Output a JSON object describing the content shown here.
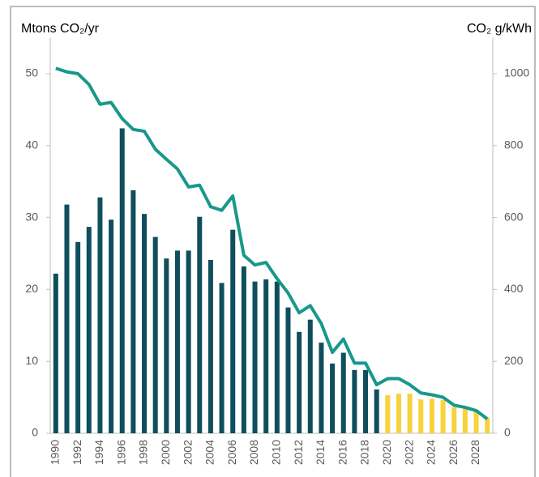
{
  "chart_data": {
    "type": "bar",
    "ylabel": "Mtons CO₂/yr",
    "y2label": "CO₂ g/kWh",
    "categories": [
      "1990",
      null,
      "1992",
      null,
      "1994",
      null,
      "1996",
      null,
      "1998",
      null,
      "2000",
      null,
      "2002",
      null,
      "2004",
      null,
      "2006",
      null,
      "2008",
      null,
      "2010",
      null,
      "2012",
      null,
      "2014",
      null,
      "2016",
      null,
      "2018",
      null,
      "2020",
      null,
      "2022",
      null,
      "2024",
      null,
      "2026",
      null,
      "2028",
      null
    ],
    "series": [
      {
        "type": "bar",
        "values": [
          22.2,
          31.8,
          26.6,
          28.7,
          32.8,
          29.7,
          42.4,
          33.8,
          30.5,
          27.3,
          24.3,
          25.4,
          25.4,
          30.1,
          24.1,
          20.9,
          28.3,
          23.2,
          21.1,
          21.4,
          21.1,
          17.5,
          14.1,
          15.8,
          12.6,
          9.7,
          11.2,
          8.8,
          8.8,
          6.1,
          5.3,
          5.5,
          5.5,
          4.7,
          4.8,
          4.6,
          3.6,
          3.4,
          3.0,
          2.2
        ],
        "colors": [
          "#0f4e5c",
          "#0f4e5c",
          "#0f4e5c",
          "#0f4e5c",
          "#0f4e5c",
          "#0f4e5c",
          "#0f4e5c",
          "#0f4e5c",
          "#0f4e5c",
          "#0f4e5c",
          "#0f4e5c",
          "#0f4e5c",
          "#0f4e5c",
          "#0f4e5c",
          "#0f4e5c",
          "#0f4e5c",
          "#0f4e5c",
          "#0f4e5c",
          "#0f4e5c",
          "#0f4e5c",
          "#0f4e5c",
          "#0f4e5c",
          "#0f4e5c",
          "#0f4e5c",
          "#0f4e5c",
          "#0f4e5c",
          "#0f4e5c",
          "#0f4e5c",
          "#0f4e5c",
          "#0f4e5c",
          "#f8d23c",
          "#f8d23c",
          "#f8d23c",
          "#f8d23c",
          "#f8d23c",
          "#f8d23c",
          "#f8d23c",
          "#f8d23c",
          "#f8d23c",
          "#f8d23c"
        ]
      },
      {
        "type": "line",
        "axis": "y2",
        "color": "#18988b",
        "values": [
          1015,
          1005,
          1000,
          970,
          915,
          920,
          875,
          845,
          840,
          790,
          762,
          735,
          685,
          690,
          630,
          620,
          660,
          495,
          468,
          475,
          430,
          390,
          335,
          355,
          305,
          225,
          262,
          195,
          195,
          135,
          152,
          152,
          135,
          112,
          107,
          100,
          78,
          72,
          63,
          40
        ]
      }
    ],
    "ylim": [
      0,
      55
    ],
    "yticks": [
      0,
      10,
      20,
      30,
      40,
      50
    ],
    "y2lim": [
      0,
      1100
    ],
    "y2ticks": [
      0,
      200,
      400,
      600,
      800,
      1000
    ]
  }
}
